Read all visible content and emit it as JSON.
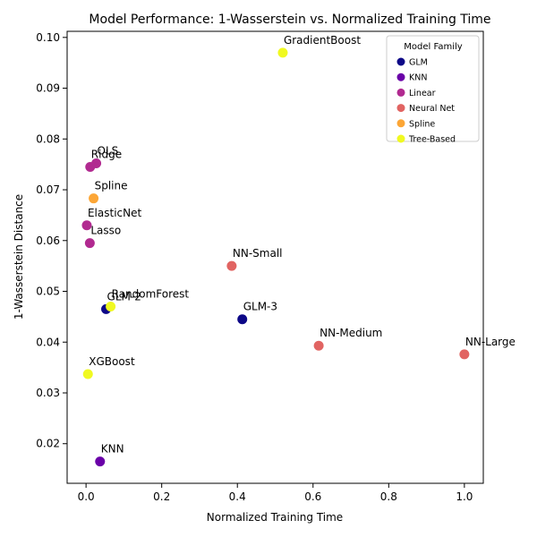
{
  "chart_data": {
    "type": "scatter",
    "title": "Model Performance: 1-Wasserstein vs. Normalized Training Time",
    "xlabel": "Normalized Training Time",
    "ylabel": "1-Wasserstein Distance",
    "xlim": [
      -0.05,
      1.05
    ],
    "ylim": [
      0.0122,
      0.1012
    ],
    "xticks": [
      0.0,
      0.2,
      0.4,
      0.6,
      0.8,
      1.0
    ],
    "xtick_labels": [
      "0.0",
      "0.2",
      "0.4",
      "0.6",
      "0.8",
      "1.0"
    ],
    "yticks": [
      0.02,
      0.03,
      0.04,
      0.05,
      0.06,
      0.07,
      0.08,
      0.09,
      0.1
    ],
    "ytick_labels": [
      "0.02",
      "0.03",
      "0.04",
      "0.05",
      "0.06",
      "0.07",
      "0.08",
      "0.09",
      "0.10"
    ],
    "grid": false,
    "legend": {
      "title": "Model Family",
      "placement": "top-right",
      "entries": [
        {
          "name": "GLM",
          "color": "#0d0887"
        },
        {
          "name": "KNN",
          "color": "#6a00a8"
        },
        {
          "name": "Linear",
          "color": "#b12a90"
        },
        {
          "name": "Neural Net",
          "color": "#e16462"
        },
        {
          "name": "Spline",
          "color": "#fca636"
        },
        {
          "name": "Tree-Based",
          "color": "#f0f921"
        }
      ]
    },
    "points": [
      {
        "label": "GradientBoost",
        "family": "Tree-Based",
        "x": 0.52,
        "y": 0.097
      },
      {
        "label": "OLS",
        "family": "Linear",
        "x": 0.027,
        "y": 0.0752
      },
      {
        "label": "Ridge",
        "family": "Linear",
        "x": 0.011,
        "y": 0.0745
      },
      {
        "label": "Spline",
        "family": "Spline",
        "x": 0.02,
        "y": 0.0683
      },
      {
        "label": "ElasticNet",
        "family": "Linear",
        "x": 0.002,
        "y": 0.063
      },
      {
        "label": "Lasso",
        "family": "Linear",
        "x": 0.01,
        "y": 0.0595
      },
      {
        "label": "NN-Small",
        "family": "Neural Net",
        "x": 0.385,
        "y": 0.055
      },
      {
        "label": "GLM-2",
        "family": "GLM",
        "x": 0.053,
        "y": 0.0465
      },
      {
        "label": "RandomForest",
        "family": "Tree-Based",
        "x": 0.065,
        "y": 0.047
      },
      {
        "label": "GLM-3",
        "family": "GLM",
        "x": 0.413,
        "y": 0.0445
      },
      {
        "label": "NN-Medium",
        "family": "Neural Net",
        "x": 0.615,
        "y": 0.0393
      },
      {
        "label": "NN-Large",
        "family": "Neural Net",
        "x": 1.0,
        "y": 0.0376
      },
      {
        "label": "XGBoost",
        "family": "Tree-Based",
        "x": 0.005,
        "y": 0.0337
      },
      {
        "label": "KNN",
        "family": "KNN",
        "x": 0.037,
        "y": 0.0165
      }
    ]
  }
}
